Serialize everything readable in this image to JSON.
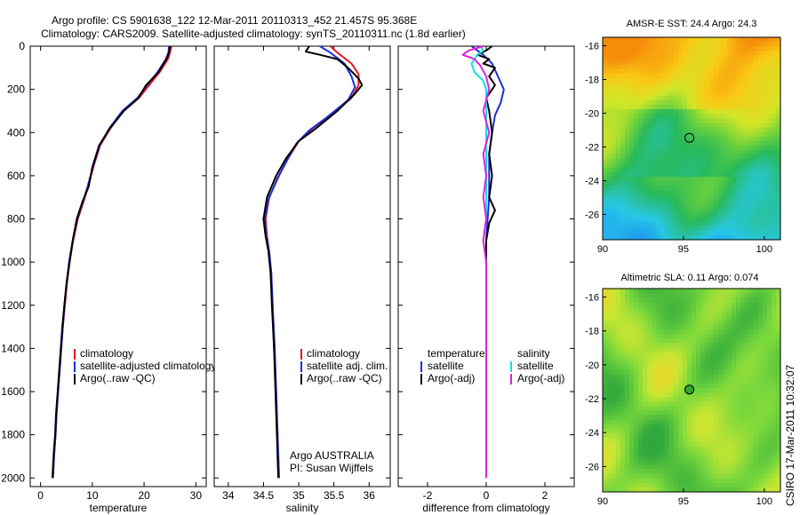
{
  "title_line1": "Argo profile: CS 5901638_122 12-Mar-2011 20110313_452 21.457S 95.368E",
  "title_line2": "Climatology: CARS2009. Satellite-adjusted climatology: synTS_20110311.nc (1.8d earlier)",
  "side_label": "CSIRO 17-Mar-2011 10:32:07",
  "colors": {
    "climatology": "#e8141c",
    "satellite": "#1a2fd8",
    "argo": "#000000",
    "sat_diff": "#10e0e8",
    "argo_diff": "#e020e0"
  },
  "chart_data": [
    {
      "type": "line",
      "panel": "temperature",
      "xlabel": "temperature",
      "ylabel": "",
      "xlim": [
        -2,
        32
      ],
      "ylim": [
        2040,
        0
      ],
      "xticks": [
        "0",
        "10",
        "20",
        "30"
      ],
      "yticks": [
        "0",
        "200",
        "400",
        "600",
        "800",
        "1000",
        "1200",
        "1400",
        "1600",
        "1800",
        "2000"
      ],
      "legend": [
        "climatology",
        "satellite-adjusted climatology",
        "Argo(..raw -QC)"
      ],
      "series": [
        {
          "name": "climatology",
          "color": "#e8141c",
          "points": [
            [
              25.3,
              0
            ],
            [
              25.0,
              30
            ],
            [
              24.6,
              60
            ],
            [
              23.0,
              120
            ],
            [
              21.0,
              180
            ],
            [
              19.0,
              240
            ],
            [
              16.0,
              300
            ],
            [
              13.5,
              380
            ],
            [
              11.5,
              460
            ],
            [
              10.2,
              560
            ],
            [
              9.2,
              650
            ],
            [
              8.3,
              720
            ],
            [
              7.2,
              800
            ],
            [
              6.3,
              900
            ],
            [
              5.6,
              1000
            ],
            [
              5.1,
              1100
            ],
            [
              4.7,
              1200
            ],
            [
              4.3,
              1300
            ],
            [
              4.0,
              1400
            ],
            [
              3.7,
              1500
            ],
            [
              3.4,
              1600
            ],
            [
              3.1,
              1700
            ],
            [
              2.9,
              1800
            ],
            [
              2.6,
              1900
            ],
            [
              2.4,
              2000
            ]
          ]
        },
        {
          "name": "satellite-adjusted climatology",
          "color": "#1a2fd8",
          "points": [
            [
              24.8,
              0
            ],
            [
              24.7,
              30
            ],
            [
              24.2,
              60
            ],
            [
              22.6,
              120
            ],
            [
              20.6,
              180
            ],
            [
              18.7,
              240
            ],
            [
              15.8,
              300
            ],
            [
              13.3,
              380
            ],
            [
              11.4,
              460
            ],
            [
              10.1,
              560
            ],
            [
              9.1,
              650
            ],
            [
              8.2,
              720
            ],
            [
              7.1,
              800
            ],
            [
              6.2,
              900
            ],
            [
              5.5,
              1000
            ],
            [
              5.0,
              1100
            ],
            [
              4.6,
              1200
            ],
            [
              4.3,
              1300
            ],
            [
              4.0,
              1400
            ],
            [
              3.7,
              1500
            ],
            [
              3.4,
              1600
            ],
            [
              3.1,
              1700
            ],
            [
              2.9,
              1800
            ],
            [
              2.6,
              1900
            ],
            [
              2.4,
              2000
            ]
          ]
        },
        {
          "name": "Argo(..raw -QC)",
          "color": "#000000",
          "points": [
            [
              25.0,
              0
            ],
            [
              24.8,
              30
            ],
            [
              24.3,
              60
            ],
            [
              22.8,
              120
            ],
            [
              20.4,
              180
            ],
            [
              18.9,
              240
            ],
            [
              16.1,
              300
            ],
            [
              13.4,
              380
            ],
            [
              11.3,
              460
            ],
            [
              10.0,
              560
            ],
            [
              9.3,
              650
            ],
            [
              8.1,
              720
            ],
            [
              7.0,
              800
            ],
            [
              6.2,
              900
            ],
            [
              5.6,
              1000
            ],
            [
              5.0,
              1100
            ],
            [
              4.6,
              1200
            ],
            [
              4.2,
              1300
            ],
            [
              3.9,
              1400
            ],
            [
              3.6,
              1500
            ],
            [
              3.3,
              1600
            ],
            [
              3.0,
              1700
            ],
            [
              2.8,
              1800
            ],
            [
              2.5,
              1900
            ],
            [
              2.3,
              2000
            ]
          ]
        }
      ]
    },
    {
      "type": "line",
      "panel": "salinity",
      "xlabel": "salinity",
      "xlim": [
        33.8,
        36.3
      ],
      "ylim": [
        2040,
        0
      ],
      "xticks": [
        "34",
        "34.5",
        "35",
        "35.5",
        "36"
      ],
      "legend": [
        "climatology",
        "satellite adj. clim.",
        "Argo(..raw -QC)"
      ],
      "annotations": [
        "Argo AUSTRALIA",
        "PI: Susan Wijffels"
      ],
      "series": [
        {
          "name": "climatology",
          "color": "#e8141c",
          "points": [
            [
              35.45,
              0
            ],
            [
              35.55,
              30
            ],
            [
              35.75,
              80
            ],
            [
              35.85,
              130
            ],
            [
              35.85,
              180
            ],
            [
              35.75,
              240
            ],
            [
              35.45,
              320
            ],
            [
              35.2,
              380
            ],
            [
              35.0,
              440
            ],
            [
              34.85,
              520
            ],
            [
              34.72,
              600
            ],
            [
              34.58,
              700
            ],
            [
              34.53,
              800
            ],
            [
              34.55,
              880
            ],
            [
              34.58,
              950
            ],
            [
              34.61,
              1050
            ],
            [
              34.63,
              1200
            ],
            [
              34.65,
              1400
            ],
            [
              34.68,
              1600
            ],
            [
              34.7,
              1800
            ],
            [
              34.72,
              2000
            ]
          ]
        },
        {
          "name": "satellite adj. clim.",
          "color": "#1a2fd8",
          "points": [
            [
              35.3,
              0
            ],
            [
              35.45,
              30
            ],
            [
              35.65,
              80
            ],
            [
              35.75,
              140
            ],
            [
              35.8,
              190
            ],
            [
              35.7,
              250
            ],
            [
              35.4,
              330
            ],
            [
              35.15,
              390
            ],
            [
              34.97,
              450
            ],
            [
              34.83,
              530
            ],
            [
              34.7,
              610
            ],
            [
              34.57,
              710
            ],
            [
              34.52,
              800
            ],
            [
              34.54,
              880
            ],
            [
              34.58,
              950
            ],
            [
              34.61,
              1050
            ],
            [
              34.63,
              1200
            ],
            [
              34.66,
              1400
            ],
            [
              34.68,
              1600
            ],
            [
              34.7,
              1800
            ],
            [
              34.72,
              2000
            ]
          ]
        },
        {
          "name": "Argo(..raw -QC)",
          "color": "#000000",
          "points": [
            [
              35.15,
              0
            ],
            [
              35.1,
              25
            ],
            [
              35.3,
              40
            ],
            [
              35.55,
              60
            ],
            [
              35.7,
              100
            ],
            [
              35.85,
              150
            ],
            [
              35.9,
              180
            ],
            [
              35.8,
              220
            ],
            [
              35.55,
              300
            ],
            [
              35.25,
              380
            ],
            [
              35.0,
              440
            ],
            [
              34.82,
              520
            ],
            [
              34.68,
              600
            ],
            [
              34.55,
              700
            ],
            [
              34.5,
              800
            ],
            [
              34.53,
              880
            ],
            [
              34.57,
              950
            ],
            [
              34.6,
              1050
            ],
            [
              34.62,
              1200
            ],
            [
              34.65,
              1400
            ],
            [
              34.67,
              1600
            ],
            [
              34.69,
              1800
            ],
            [
              34.71,
              2000
            ]
          ]
        }
      ]
    },
    {
      "type": "line",
      "panel": "difference",
      "xlabel": "difference from climatology",
      "xlim": [
        -3,
        3
      ],
      "ylim": [
        2040,
        0
      ],
      "xticks": [
        "-2",
        "0",
        "2"
      ],
      "legend_temperature": [
        "temperature",
        "satellite",
        "Argo(-adj)"
      ],
      "legend_salinity": [
        "salinity",
        "satellite",
        "Argo(-adj)"
      ],
      "series": [
        {
          "name": "temperature satellite",
          "color": "#1a2fd8",
          "points": [
            [
              -0.5,
              0
            ],
            [
              -0.3,
              20
            ],
            [
              -0.1,
              40
            ],
            [
              0.2,
              80
            ],
            [
              0.4,
              140
            ],
            [
              0.6,
              200
            ],
            [
              0.5,
              260
            ],
            [
              0.3,
              320
            ],
            [
              0.2,
              400
            ],
            [
              0.1,
              500
            ],
            [
              0.1,
              700
            ],
            [
              0.0,
              900
            ],
            [
              0.0,
              1200
            ],
            [
              0.0,
              1600
            ],
            [
              0.0,
              2000
            ]
          ]
        },
        {
          "name": "temperature Argo(-adj)",
          "color": "#000000",
          "points": [
            [
              0.2,
              0
            ],
            [
              0.0,
              20
            ],
            [
              -0.3,
              40
            ],
            [
              0.1,
              60
            ],
            [
              -0.1,
              80
            ],
            [
              0.3,
              100
            ],
            [
              0.1,
              140
            ],
            [
              0.3,
              180
            ],
            [
              0.0,
              240
            ],
            [
              0.1,
              300
            ],
            [
              0.2,
              400
            ],
            [
              0.1,
              500
            ],
            [
              0.2,
              600
            ],
            [
              0.1,
              700
            ],
            [
              0.3,
              760
            ],
            [
              0.1,
              820
            ],
            [
              0.0,
              900
            ],
            [
              0.0,
              1200
            ],
            [
              0.0,
              1600
            ],
            [
              0.0,
              2000
            ]
          ]
        },
        {
          "name": "salinity satellite",
          "color": "#10e0e8",
          "points": [
            [
              -0.2,
              0
            ],
            [
              -0.1,
              20
            ],
            [
              -0.3,
              40
            ],
            [
              -0.5,
              80
            ],
            [
              -0.4,
              120
            ],
            [
              -0.1,
              160
            ],
            [
              0.0,
              200
            ],
            [
              0.0,
              300
            ],
            [
              0.0,
              500
            ],
            [
              0.0,
              800
            ],
            [
              -0.1,
              900
            ],
            [
              0.0,
              1000
            ],
            [
              0.0,
              1200
            ],
            [
              0.0,
              1600
            ],
            [
              0.0,
              2000
            ]
          ]
        },
        {
          "name": "salinity Argo(-adj)",
          "color": "#e020e0",
          "points": [
            [
              -0.1,
              0
            ],
            [
              -0.6,
              20
            ],
            [
              -0.8,
              40
            ],
            [
              -0.4,
              60
            ],
            [
              -0.2,
              90
            ],
            [
              0.0,
              140
            ],
            [
              0.1,
              200
            ],
            [
              -0.1,
              300
            ],
            [
              0.1,
              400
            ],
            [
              -0.1,
              500
            ],
            [
              0.0,
              600
            ],
            [
              -0.1,
              700
            ],
            [
              0.0,
              800
            ],
            [
              -0.1,
              900
            ],
            [
              0.0,
              1000
            ],
            [
              0.0,
              1200
            ],
            [
              0.0,
              1600
            ],
            [
              0.0,
              2000
            ]
          ]
        }
      ]
    },
    {
      "type": "heatmap",
      "panel": "map_sst",
      "title": "AMSR-E SST: 24.4  Argo: 24.3",
      "xlim": [
        90,
        101
      ],
      "ylim": [
        -27.5,
        -15.5
      ],
      "xticks": [
        "90",
        "95",
        "100"
      ],
      "yticks": [
        "-16",
        "-18",
        "-20",
        "-22",
        "-24",
        "-26"
      ],
      "marker": [
        95.368,
        -21.457
      ]
    },
    {
      "type": "heatmap",
      "panel": "map_sla",
      "title": "Altimetric SLA: 0.11  Argo: 0.074",
      "xlim": [
        90,
        101
      ],
      "ylim": [
        -27.5,
        -15.5
      ],
      "xticks": [
        "90",
        "95",
        "100"
      ],
      "yticks": [
        "-16",
        "-18",
        "-20",
        "-22",
        "-24",
        "-26"
      ],
      "marker": [
        95.368,
        -21.457
      ]
    }
  ]
}
